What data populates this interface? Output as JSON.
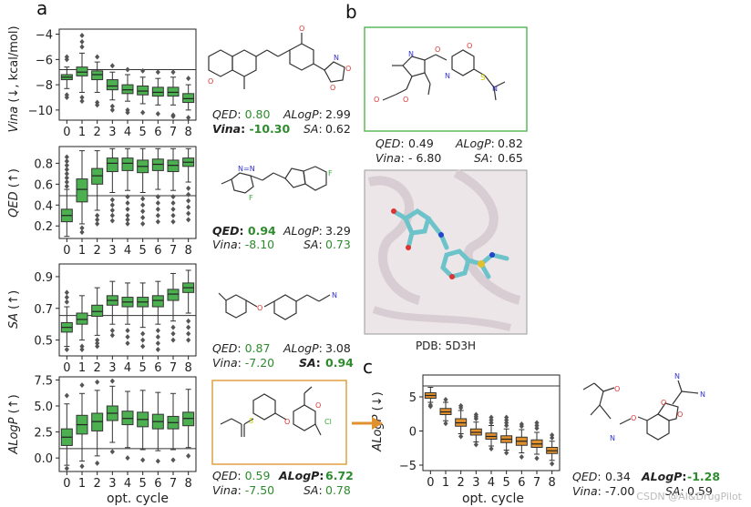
{
  "panels": {
    "a": "a",
    "b": "b",
    "c": "c"
  },
  "x_axis_label": "opt. cycle",
  "colors": {
    "green_box": "#4caf50",
    "orange_box": "#e0902c",
    "highlight_green": "#2e8b2e",
    "frame_green": "#5cb85c",
    "frame_orange": "#e0a040"
  },
  "chart_data": [
    {
      "type": "box",
      "id": "vina",
      "ylabel_main": "Vina",
      "ylabel_suffix": "(↓, kcal/mol)",
      "categories": [
        "0",
        "1",
        "2",
        "3",
        "4",
        "5",
        "6",
        "7",
        "8"
      ],
      "ylim": [
        -10.8,
        -3.6
      ],
      "yticks": [
        -4,
        -6,
        -8,
        -10
      ],
      "ytick_labels": [
        "−4",
        "−6",
        "−8",
        "−10"
      ],
      "hline": -6.8,
      "color": "#4caf50",
      "boxes": [
        {
          "min": -8.3,
          "q1": -7.6,
          "med": -7.4,
          "q3": -7.2,
          "max": -6.6
        },
        {
          "min": -8.6,
          "q1": -7.3,
          "med": -7.0,
          "q3": -6.6,
          "max": -5.5
        },
        {
          "min": -8.6,
          "q1": -7.6,
          "med": -7.2,
          "q3": -6.9,
          "max": -6.2
        },
        {
          "min": -9.2,
          "q1": -8.4,
          "med": -8.1,
          "q3": -7.6,
          "max": -7.0
        },
        {
          "min": -9.3,
          "q1": -8.7,
          "med": -8.4,
          "q3": -8.0,
          "max": -7.2
        },
        {
          "min": -9.5,
          "q1": -8.8,
          "med": -8.5,
          "q3": -8.1,
          "max": -7.4
        },
        {
          "min": -9.6,
          "q1": -8.9,
          "med": -8.6,
          "q3": -8.2,
          "max": -7.5
        },
        {
          "min": -9.6,
          "q1": -8.9,
          "med": -8.6,
          "q3": -8.2,
          "max": -7.4
        },
        {
          "min": -10.0,
          "q1": -9.4,
          "med": -9.1,
          "q3": -8.7,
          "max": -8.0
        }
      ],
      "outliers": [
        {
          "x": 0,
          "ys": [
            -6.0,
            -5.8,
            -9.0,
            -8.8
          ]
        },
        {
          "x": 1,
          "ys": [
            -4.1,
            -4.6,
            -5.0,
            -9.0,
            -9.3
          ]
        },
        {
          "x": 2,
          "ys": [
            -5.8,
            -9.4,
            -9.6
          ]
        },
        {
          "x": 3,
          "ys": [
            -6.5,
            -9.7,
            -10.0
          ]
        },
        {
          "x": 4,
          "ys": [
            -6.8,
            -10.0,
            -10.2
          ]
        },
        {
          "x": 5,
          "ys": [
            -6.9,
            -10.2
          ]
        },
        {
          "x": 6,
          "ys": [
            -7.0,
            -10.3
          ]
        },
        {
          "x": 7,
          "ys": [
            -7.0,
            -10.4,
            -10.5
          ]
        },
        {
          "x": 8,
          "ys": [
            -7.5,
            -10.6
          ]
        }
      ]
    },
    {
      "type": "box",
      "id": "qed",
      "ylabel_main": "QED",
      "ylabel_suffix": "(↑)",
      "categories": [
        "0",
        "1",
        "2",
        "3",
        "4",
        "5",
        "6",
        "7",
        "8"
      ],
      "ylim": [
        0.08,
        0.96
      ],
      "yticks": [
        0.2,
        0.4,
        0.6,
        0.8
      ],
      "ytick_labels": [
        "0.2",
        "0.4",
        "0.6",
        "0.8"
      ],
      "hline": 0.49,
      "color": "#4caf50",
      "boxes": [
        {
          "min": 0.1,
          "q1": 0.24,
          "med": 0.3,
          "q3": 0.36,
          "max": 0.55
        },
        {
          "min": 0.22,
          "q1": 0.43,
          "med": 0.55,
          "q3": 0.65,
          "max": 0.92
        },
        {
          "min": 0.35,
          "q1": 0.6,
          "med": 0.68,
          "q3": 0.75,
          "max": 0.92
        },
        {
          "min": 0.52,
          "q1": 0.72,
          "med": 0.8,
          "q3": 0.85,
          "max": 0.94
        },
        {
          "min": 0.54,
          "q1": 0.73,
          "med": 0.8,
          "q3": 0.85,
          "max": 0.94
        },
        {
          "min": 0.52,
          "q1": 0.71,
          "med": 0.77,
          "q3": 0.83,
          "max": 0.94
        },
        {
          "min": 0.55,
          "q1": 0.73,
          "med": 0.79,
          "q3": 0.84,
          "max": 0.94
        },
        {
          "min": 0.54,
          "q1": 0.72,
          "med": 0.78,
          "q3": 0.83,
          "max": 0.94
        },
        {
          "min": 0.62,
          "q1": 0.77,
          "med": 0.81,
          "q3": 0.85,
          "max": 0.94
        }
      ],
      "outliers": [
        {
          "x": 0,
          "ys": [
            0.58,
            0.62,
            0.66,
            0.7,
            0.74,
            0.78,
            0.82,
            0.86
          ]
        },
        {
          "x": 1,
          "ys": [
            0.18,
            0.14
          ]
        },
        {
          "x": 2,
          "ys": [
            0.3,
            0.26,
            0.22
          ]
        },
        {
          "x": 3,
          "ys": [
            0.45,
            0.4,
            0.35,
            0.3,
            0.25
          ]
        },
        {
          "x": 4,
          "ys": [
            0.48,
            0.42,
            0.36,
            0.3,
            0.26,
            0.22
          ]
        },
        {
          "x": 5,
          "ys": [
            0.46,
            0.4,
            0.34,
            0.28,
            0.22
          ]
        },
        {
          "x": 6,
          "ys": [
            0.48,
            0.42,
            0.36,
            0.3,
            0.24
          ]
        },
        {
          "x": 7,
          "ys": [
            0.48,
            0.42,
            0.36,
            0.3,
            0.24
          ]
        },
        {
          "x": 8,
          "ys": [
            0.56,
            0.5,
            0.44,
            0.38,
            0.32,
            0.26
          ]
        }
      ]
    },
    {
      "type": "box",
      "id": "sa",
      "ylabel_main": "SA",
      "ylabel_suffix": "(↑)",
      "categories": [
        "0",
        "1",
        "2",
        "3",
        "4",
        "5",
        "6",
        "7",
        "8"
      ],
      "ylim": [
        0.4,
        0.98
      ],
      "yticks": [
        0.5,
        0.7,
        0.9
      ],
      "ytick_labels": [
        "0.5",
        "0.7",
        "0.9"
      ],
      "hline": 0.655,
      "color": "#4caf50",
      "boxes": [
        {
          "min": 0.46,
          "q1": 0.55,
          "med": 0.58,
          "q3": 0.61,
          "max": 0.71
        },
        {
          "min": 0.5,
          "q1": 0.6,
          "med": 0.63,
          "q3": 0.67,
          "max": 0.78
        },
        {
          "min": 0.53,
          "q1": 0.65,
          "med": 0.68,
          "q3": 0.72,
          "max": 0.83
        },
        {
          "min": 0.6,
          "q1": 0.72,
          "med": 0.75,
          "q3": 0.78,
          "max": 0.87
        },
        {
          "min": 0.6,
          "q1": 0.71,
          "med": 0.74,
          "q3": 0.77,
          "max": 0.86
        },
        {
          "min": 0.58,
          "q1": 0.71,
          "med": 0.74,
          "q3": 0.77,
          "max": 0.86
        },
        {
          "min": 0.6,
          "q1": 0.71,
          "med": 0.75,
          "q3": 0.78,
          "max": 0.87
        },
        {
          "min": 0.62,
          "q1": 0.75,
          "med": 0.79,
          "q3": 0.82,
          "max": 0.92
        },
        {
          "min": 0.67,
          "q1": 0.8,
          "med": 0.83,
          "q3": 0.86,
          "max": 0.94
        }
      ],
      "outliers": [
        {
          "x": 0,
          "ys": [
            0.44,
            0.74,
            0.77,
            0.8
          ]
        },
        {
          "x": 1,
          "ys": [
            0.46,
            0.44
          ]
        },
        {
          "x": 2,
          "ys": [
            0.5,
            0.48,
            0.46
          ]
        },
        {
          "x": 3,
          "ys": [
            0.56,
            0.53
          ]
        },
        {
          "x": 4,
          "ys": [
            0.56,
            0.52,
            0.48
          ]
        },
        {
          "x": 5,
          "ys": [
            0.54,
            0.5,
            0.46
          ]
        },
        {
          "x": 6,
          "ys": [
            0.56,
            0.52,
            0.48,
            0.44
          ]
        },
        {
          "x": 7,
          "ys": [
            0.58,
            0.54,
            0.5
          ]
        },
        {
          "x": 8,
          "ys": [
            0.62,
            0.58,
            0.54,
            0.5
          ]
        }
      ]
    },
    {
      "type": "box",
      "id": "alogp",
      "ylabel_main": "ALogP",
      "ylabel_suffix": "(↑)",
      "categories": [
        "0",
        "1",
        "2",
        "3",
        "4",
        "5",
        "6",
        "7",
        "8"
      ],
      "ylim": [
        -1.3,
        7.8
      ],
      "yticks": [
        0.0,
        2.5,
        5.0,
        7.5
      ],
      "ytick_labels": [
        "0.0",
        "2.5",
        "5.0",
        "7.5"
      ],
      "hline": 0.9,
      "color": "#4caf50",
      "boxes": [
        {
          "min": -0.7,
          "q1": 1.2,
          "med": 2.0,
          "q3": 2.8,
          "max": 5.2
        },
        {
          "min": -0.3,
          "q1": 2.3,
          "med": 3.2,
          "q3": 4.1,
          "max": 6.2
        },
        {
          "min": 0.2,
          "q1": 2.6,
          "med": 3.5,
          "q3": 4.3,
          "max": 6.5
        },
        {
          "min": 1.5,
          "q1": 3.6,
          "med": 4.3,
          "q3": 5.0,
          "max": 6.9
        },
        {
          "min": 1.0,
          "q1": 3.2,
          "med": 3.8,
          "q3": 4.5,
          "max": 6.4
        },
        {
          "min": 0.8,
          "q1": 3.0,
          "med": 3.7,
          "q3": 4.4,
          "max": 6.5
        },
        {
          "min": 0.7,
          "q1": 2.8,
          "med": 3.5,
          "q3": 4.2,
          "max": 6.3
        },
        {
          "min": 0.8,
          "q1": 2.8,
          "med": 3.4,
          "q3": 4.0,
          "max": 6.2
        },
        {
          "min": 1.0,
          "q1": 3.1,
          "med": 3.8,
          "q3": 4.4,
          "max": 6.6
        }
      ],
      "outliers": [
        {
          "x": 0,
          "ys": [
            -1.0,
            6.0
          ]
        },
        {
          "x": 1,
          "ys": [
            -0.8,
            7.0
          ]
        },
        {
          "x": 2,
          "ys": [
            -0.5,
            7.3
          ]
        },
        {
          "x": 3,
          "ys": [
            0.6,
            7.4
          ]
        },
        {
          "x": 4,
          "ys": [
            0.0
          ]
        },
        {
          "x": 5,
          "ys": [
            -0.2
          ]
        },
        {
          "x": 6,
          "ys": [
            -0.3
          ]
        },
        {
          "x": 7,
          "ys": [
            -0.2
          ]
        },
        {
          "x": 8,
          "ys": [
            0.2
          ]
        }
      ]
    },
    {
      "type": "box",
      "id": "alogp_down",
      "ylabel_main": "ALogP",
      "ylabel_suffix": "(↓)",
      "categories": [
        "0",
        "1",
        "2",
        "3",
        "4",
        "5",
        "6",
        "7",
        "8"
      ],
      "ylim": [
        -5.8,
        8.2
      ],
      "yticks": [
        5,
        0,
        -5
      ],
      "ytick_labels": [
        "5",
        "0",
        "−5"
      ],
      "hline": 6.6,
      "color": "#e0902c",
      "boxes": [
        {
          "min": 4.2,
          "q1": 4.8,
          "med": 5.2,
          "q3": 5.6,
          "max": 6.4
        },
        {
          "min": 1.5,
          "q1": 2.4,
          "med": 2.8,
          "q3": 3.3,
          "max": 4.2
        },
        {
          "min": -0.4,
          "q1": 0.7,
          "med": 1.2,
          "q3": 1.8,
          "max": 3.0
        },
        {
          "min": -1.6,
          "q1": -0.6,
          "med": -0.2,
          "q3": 0.3,
          "max": 1.3
        },
        {
          "min": -2.2,
          "q1": -1.2,
          "med": -0.8,
          "q3": -0.3,
          "max": 0.8
        },
        {
          "min": -2.8,
          "q1": -1.7,
          "med": -1.2,
          "q3": -0.7,
          "max": 0.3
        },
        {
          "min": -3.2,
          "q1": -2.1,
          "med": -1.5,
          "q3": -0.9,
          "max": 0.2
        },
        {
          "min": -3.4,
          "q1": -2.4,
          "med": -1.9,
          "q3": -1.3,
          "max": -0.2
        },
        {
          "min": -4.3,
          "q1": -3.3,
          "med": -2.9,
          "q3": -2.4,
          "max": -1.5
        }
      ],
      "outliers": [
        {
          "x": 0,
          "ys": [
            3.8,
            3.6
          ]
        },
        {
          "x": 1,
          "ys": [
            1.1,
            4.6
          ]
        },
        {
          "x": 2,
          "ys": [
            -0.8,
            3.4,
            3.7
          ]
        },
        {
          "x": 3,
          "ys": [
            -2.0,
            1.8,
            2.1,
            2.4
          ]
        },
        {
          "x": 4,
          "ys": [
            -2.6,
            1.2,
            1.6,
            2.0
          ]
        },
        {
          "x": 5,
          "ys": [
            -3.2,
            0.8,
            1.2,
            1.6,
            2.0
          ]
        },
        {
          "x": 6,
          "ys": [
            -3.8,
            0.7,
            1.0
          ]
        },
        {
          "x": 7,
          "ys": [
            -4.0,
            0.4,
            0.8,
            1.2
          ]
        },
        {
          "x": 8,
          "ys": [
            -4.8,
            -1.0,
            -0.6
          ]
        }
      ]
    }
  ],
  "molecules": {
    "a1": {
      "qed_label": "QED",
      "qed_value": "0.80",
      "alogp_label": "ALogP",
      "alogp_value": "2.99",
      "vina_label": "Vina",
      "vina_value": "-10.30",
      "sa_label": "SA",
      "sa_value": "0.62"
    },
    "a2": {
      "qed_label": "QED",
      "qed_value": "0.94",
      "alogp_label": "ALogP",
      "alogp_value": "3.29",
      "vina_label": "Vina",
      "vina_value": "-8.10",
      "sa_label": "SA",
      "sa_value": "0.73"
    },
    "a3": {
      "qed_label": "QED",
      "qed_value": "0.87",
      "alogp_label": "ALogP",
      "alogp_value": "3.08",
      "vina_label": "Vina",
      "vina_value": "-7.20",
      "sa_label": "SA",
      "sa_value": "0.94"
    },
    "a4": {
      "qed_label": "QED",
      "qed_value": "0.59",
      "alogp_label": "ALogP",
      "alogp_value": "6.72",
      "vina_label": "Vina",
      "vina_value": "-7.50",
      "sa_label": "SA",
      "sa_value": "0.78"
    },
    "b": {
      "qed_label": "QED",
      "qed_value": "0.49",
      "alogp_label": "ALogP",
      "alogp_value": "0.82",
      "vina_label": "Vina",
      "vina_value": "- 6.80",
      "sa_label": "SA",
      "sa_value": "0.65"
    },
    "c": {
      "qed_label": "QED",
      "qed_value": "0.34",
      "alogp_label": "ALogP",
      "alogp_value": "-1.28",
      "vina_label": "Vina",
      "vina_value": "-7.00",
      "sa_label": "SA",
      "sa_value": "0.59"
    }
  },
  "pdb_caption": "PDB: 5D3H",
  "watermark": "CSDN @AI&DrugPilot"
}
